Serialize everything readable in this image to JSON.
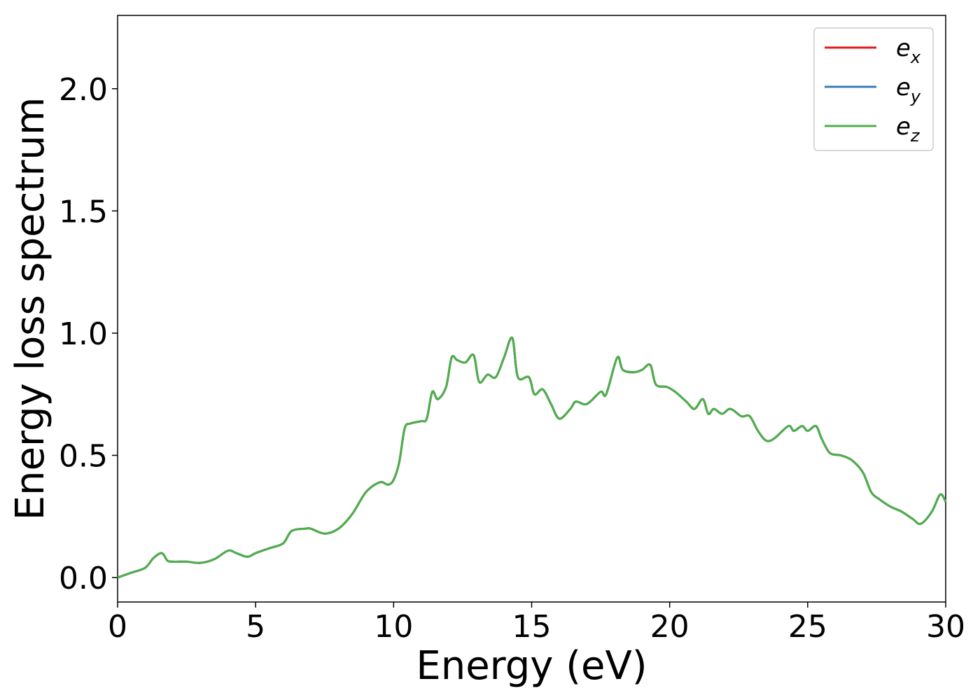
{
  "chart_data": {
    "type": "line",
    "title": "",
    "xlabel": "Energy (eV)",
    "ylabel": "Energy loss spectrum",
    "xlim": [
      0,
      30
    ],
    "ylim": [
      -0.1,
      2.3
    ],
    "xticks": [
      0,
      5,
      10,
      15,
      20,
      25,
      30
    ],
    "xtick_labels": [
      "0",
      "5",
      "10",
      "15",
      "20",
      "25",
      "30"
    ],
    "yticks": [
      0.0,
      0.5,
      1.0,
      1.5,
      2.0
    ],
    "ytick_labels": [
      "0.0",
      "0.5",
      "1.0",
      "1.5",
      "2.0"
    ],
    "grid": false,
    "legend_position": "top-right",
    "x": [
      0,
      0.5,
      1.0,
      1.3,
      1.6,
      1.8,
      2.0,
      2.5,
      3.0,
      3.5,
      4.0,
      4.3,
      4.7,
      5.0,
      5.5,
      6.0,
      6.3,
      6.8,
      7.0,
      7.5,
      8.0,
      8.5,
      9.0,
      9.5,
      9.8,
      10.0,
      10.2,
      10.4,
      10.6,
      11.0,
      11.2,
      11.4,
      11.6,
      11.9,
      12.1,
      12.3,
      12.6,
      12.9,
      13.1,
      13.4,
      13.7,
      14.0,
      14.3,
      14.5,
      14.9,
      15.1,
      15.4,
      15.7,
      16.0,
      16.4,
      16.6,
      17.0,
      17.5,
      17.7,
      18.1,
      18.3,
      18.7,
      19.0,
      19.3,
      19.5,
      19.9,
      20.2,
      20.6,
      20.9,
      21.2,
      21.4,
      21.6,
      21.9,
      22.2,
      22.6,
      22.9,
      23.2,
      23.5,
      23.8,
      24.3,
      24.5,
      24.8,
      25.0,
      25.3,
      25.5,
      25.8,
      26.2,
      26.6,
      27.0,
      27.3,
      27.6,
      28.0,
      28.4,
      28.8,
      29.1,
      29.5,
      29.8,
      30.0
    ],
    "series": [
      {
        "name": "e_x",
        "color": "#e41a1c",
        "values": [
          0.0,
          0.02,
          0.04,
          0.08,
          0.1,
          0.07,
          0.065,
          0.065,
          0.06,
          0.075,
          0.11,
          0.1,
          0.085,
          0.1,
          0.12,
          0.14,
          0.19,
          0.2,
          0.2,
          0.18,
          0.2,
          0.26,
          0.35,
          0.39,
          0.38,
          0.4,
          0.47,
          0.61,
          0.63,
          0.64,
          0.65,
          0.76,
          0.73,
          0.78,
          0.9,
          0.89,
          0.88,
          0.91,
          0.8,
          0.83,
          0.82,
          0.9,
          0.98,
          0.82,
          0.82,
          0.75,
          0.77,
          0.71,
          0.65,
          0.69,
          0.72,
          0.71,
          0.76,
          0.75,
          0.9,
          0.85,
          0.84,
          0.85,
          0.87,
          0.79,
          0.78,
          0.76,
          0.72,
          0.69,
          0.73,
          0.67,
          0.69,
          0.67,
          0.69,
          0.66,
          0.66,
          0.6,
          0.56,
          0.57,
          0.62,
          0.6,
          0.62,
          0.6,
          0.62,
          0.57,
          0.51,
          0.5,
          0.48,
          0.43,
          0.35,
          0.32,
          0.29,
          0.27,
          0.24,
          0.22,
          0.27,
          0.34,
          0.31
        ]
      },
      {
        "name": "e_y",
        "color": "#377eb8",
        "values": [
          0.0,
          0.02,
          0.04,
          0.08,
          0.1,
          0.07,
          0.065,
          0.065,
          0.06,
          0.075,
          0.11,
          0.1,
          0.085,
          0.1,
          0.12,
          0.14,
          0.19,
          0.2,
          0.2,
          0.18,
          0.2,
          0.26,
          0.35,
          0.39,
          0.38,
          0.4,
          0.47,
          0.61,
          0.63,
          0.64,
          0.65,
          0.76,
          0.73,
          0.78,
          0.9,
          0.89,
          0.88,
          0.91,
          0.8,
          0.83,
          0.82,
          0.9,
          0.98,
          0.82,
          0.82,
          0.75,
          0.77,
          0.71,
          0.65,
          0.69,
          0.72,
          0.71,
          0.76,
          0.75,
          0.9,
          0.85,
          0.84,
          0.85,
          0.87,
          0.79,
          0.78,
          0.76,
          0.72,
          0.69,
          0.73,
          0.67,
          0.69,
          0.67,
          0.69,
          0.66,
          0.66,
          0.6,
          0.56,
          0.57,
          0.62,
          0.6,
          0.62,
          0.6,
          0.62,
          0.57,
          0.51,
          0.5,
          0.48,
          0.43,
          0.35,
          0.32,
          0.29,
          0.27,
          0.24,
          0.22,
          0.27,
          0.34,
          0.31
        ]
      },
      {
        "name": "e_z",
        "color": "#4daf4a",
        "values": [
          0.0,
          0.02,
          0.04,
          0.08,
          0.1,
          0.07,
          0.065,
          0.065,
          0.06,
          0.075,
          0.11,
          0.1,
          0.085,
          0.1,
          0.12,
          0.14,
          0.19,
          0.2,
          0.2,
          0.18,
          0.2,
          0.26,
          0.35,
          0.39,
          0.38,
          0.4,
          0.47,
          0.61,
          0.63,
          0.64,
          0.65,
          0.76,
          0.73,
          0.78,
          0.9,
          0.89,
          0.88,
          0.91,
          0.8,
          0.83,
          0.82,
          0.9,
          0.98,
          0.82,
          0.82,
          0.75,
          0.77,
          0.71,
          0.65,
          0.69,
          0.72,
          0.71,
          0.76,
          0.75,
          0.9,
          0.85,
          0.84,
          0.85,
          0.87,
          0.79,
          0.78,
          0.76,
          0.72,
          0.69,
          0.73,
          0.67,
          0.69,
          0.67,
          0.69,
          0.66,
          0.66,
          0.6,
          0.56,
          0.57,
          0.62,
          0.6,
          0.62,
          0.6,
          0.62,
          0.57,
          0.51,
          0.5,
          0.48,
          0.43,
          0.35,
          0.32,
          0.29,
          0.27,
          0.24,
          0.22,
          0.27,
          0.34,
          0.31
        ]
      }
    ],
    "legend": [
      {
        "base": "e",
        "sub": "x",
        "color": "#e41a1c"
      },
      {
        "base": "e",
        "sub": "y",
        "color": "#377eb8"
      },
      {
        "base": "e",
        "sub": "z",
        "color": "#4daf4a"
      }
    ]
  }
}
